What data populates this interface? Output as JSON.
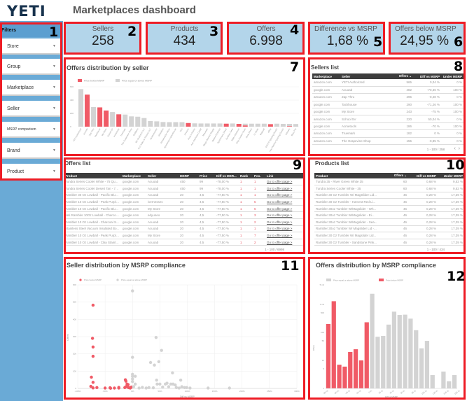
{
  "header": {
    "logo": "YETI",
    "title": "Marketplaces dashboard"
  },
  "filters": {
    "title": "Filters",
    "items": [
      "Store",
      "Group",
      "Marketplace",
      "Seller",
      "MSRP comparison",
      "Brand",
      "Product"
    ]
  },
  "kpis": [
    {
      "label": "Sellers",
      "value": "258"
    },
    {
      "label": "Products",
      "value": "434"
    },
    {
      "label": "Offers",
      "value": "6.998"
    },
    {
      "label": "Difference vs MSRP",
      "value": "1,68 %"
    },
    {
      "label": "Offers below MSRP",
      "value": "24,95 %"
    }
  ],
  "annotations": [
    "1",
    "2",
    "3",
    "4",
    "5",
    "6",
    "7",
    "8",
    "9",
    "10",
    "11",
    "12"
  ],
  "colors": {
    "below": "#f05a66",
    "above": "#d3d3d3",
    "annotation": "#ee1c25",
    "header": "#3d3d3d",
    "sidebar": "#6aaad6",
    "kpi": "#b3d5ea"
  },
  "sellers_list": {
    "title": "Sellers list",
    "columns": [
      "Marketplace",
      "Seller",
      "Offers ⌄",
      "Diff vs MSRP",
      "Under MSRP"
    ],
    "rows": [
      [
        "amazon.com",
        "YETI Authorized",
        "565",
        "0,04 %",
        "0 %"
      ],
      [
        "google.com",
        "Acuoab",
        "482",
        "-70,36 %",
        "100 %"
      ],
      [
        "amazon.com",
        "Zap Thru",
        "295",
        "-0,48 %",
        "0 %"
      ],
      [
        "google.com",
        "Tackhouse",
        "290",
        "-71,26 %",
        "100 %"
      ],
      [
        "google.com",
        "My Store",
        "243",
        "-75 %",
        "100 %"
      ],
      [
        "amazon.com",
        "School 5V",
        "220",
        "50,04 %",
        "0 %"
      ],
      [
        "google.com",
        "Acmetools",
        "186",
        "-70 %",
        "100 %"
      ],
      [
        "amazon.com",
        "Truemark",
        "182",
        "0 %",
        "0 %"
      ],
      [
        "amazon.com",
        "The Grapevine Shop",
        "155",
        "-0,85 %",
        "0 %"
      ]
    ],
    "pagination": "1 - 100 / 258"
  },
  "offers_list": {
    "title": "Offers list",
    "columns": [
      "Product",
      "Marketplace",
      "Seller",
      "MSRP",
      "Price",
      "Diff vs MSR...",
      "Rank",
      "Pos.",
      "Link"
    ],
    "rows": [
      [
        "Tundra Series Cooler White - 75 Qu...",
        "google.com",
        "Acuoab",
        "450",
        "99",
        "-78,00 %",
        "1",
        "1",
        "Go to offer page >"
      ],
      [
        "Tundra Series Cooler Desert Tan - 75...",
        "google.com",
        "Acuoab",
        "450",
        "99",
        "-78,00 %",
        "1",
        "1",
        "Go to offer page >"
      ],
      [
        "Rambler 30 Oz Lowball - Pacific Blue ...",
        "google.com",
        "Acuoab",
        "20",
        "4,5",
        "-77,50 %",
        "1",
        "1",
        "Go to offer page >"
      ],
      [
        "Rambler 10 Oz Lowball - Peak Purple ...",
        "google.com",
        "ivernesses",
        "20",
        "4,5",
        "-77,50 %",
        "1",
        "5",
        "Go to offer page >"
      ],
      [
        "Rambler 10 Oz Lowball - Pacific Blue ...",
        "google.com",
        "My Store",
        "20",
        "4,5",
        "-77,50 %",
        "1",
        "6",
        "Go to offer page >"
      ],
      [
        "Yeti Rambler 10Oz Lowball - Charcoal...",
        "google.com",
        "edyuneo",
        "20",
        "4,5",
        "-77,50 %",
        "1",
        "3",
        "Go to offer page >"
      ],
      [
        "Rambler 10 Oz Lowball - Charcoal S...",
        "google.com",
        "Acuoab",
        "20",
        "4,5",
        "-77,50 %",
        "1",
        "2",
        "Go to offer page >"
      ],
      [
        "Stainless Steel Vacuum Insulated Bo...",
        "google.com",
        "Acuoab",
        "20",
        "4,5",
        "-77,50 %",
        "1",
        "1",
        "Go to offer page >"
      ],
      [
        "Rambler 10 Oz Lowball - Peak Purple ...",
        "google.com",
        "My Store",
        "20",
        "4,5",
        "-77,50 %",
        "1",
        "7",
        "Go to offer page >"
      ],
      [
        "Rambler 10 Oz Lowball - Clay Stainless...",
        "google.com",
        "Acuoab",
        "20",
        "4,5",
        "-77,50 %",
        "1",
        "2",
        "Go to offer page >"
      ]
    ],
    "pagination": "1 - 100 / 6998"
  },
  "products_list": {
    "title": "Products list",
    "columns": [
      "Product",
      "Offers ⌄",
      "Diff vs MSRP",
      "Under MSRP"
    ],
    "rows": [
      [
        "Tundra 35 - River Green White 35",
        "60",
        "0,68 %",
        "9,52 %"
      ],
      [
        "Tundra Series Cooler White - 35",
        "60",
        "0,68 %",
        "9,52 %"
      ],
      [
        "Rambler 30 Oz Tumbler W/ MagSlider Lid...",
        "46",
        "0,28 %",
        "17,39 %"
      ],
      [
        "Rambler 30 Oz Tumbler - Harvest Red Li...",
        "46",
        "0,28 %",
        "17,39 %"
      ],
      [
        "Rambler 30oz Tumbler W/Magslider - Wh...",
        "46",
        "0,28 %",
        "17,39 %"
      ],
      [
        "Rambler 30oz Tumbler W/Magslider - Ei...",
        "46",
        "0,28 %",
        "17,39 %"
      ],
      [
        "Rambler 30oz Tumbler W/Magslider - Sea...",
        "46",
        "0,28 %",
        "17,39 %"
      ],
      [
        "Rambler 30oz Tumbler W/ Magslider Lid -...",
        "46",
        "0,28 %",
        "17,39 %"
      ],
      [
        "Rambler 30 Oz Tumbler W/ Magslider Lid...",
        "46",
        "0,28 %",
        "17,39 %"
      ],
      [
        "Rambler 30 Oz Tumbler - Sandstone Pink...",
        "46",
        "0,28 %",
        "17,39 %"
      ]
    ],
    "pagination": "1 - 100 / 434"
  },
  "chart_data": [
    {
      "type": "bar",
      "stacked": true,
      "title": "Offers distribution by seller",
      "legend": "top-left",
      "ylim": [
        0,
        600
      ],
      "yticks": [
        "0",
        "200",
        "400",
        "600"
      ],
      "categories": [
        "YETI Authorized",
        "Acuoab",
        "Zap Thru",
        "Tackhouse",
        "My Store",
        "School 5V",
        "Acmetools",
        "Truemark",
        "The Grapevine Shop",
        "Outfitters",
        "BC Outdoors LLC",
        "RLS Sales & Service LLC",
        "Outdoorsmen",
        "Wheelers",
        "Ambassador Store",
        "Sportsman's Warehouse",
        "WS",
        "Amazon",
        "Rock's Stores",
        "Ace Hardware Outlet",
        "Mountain",
        "Mega Outdoor Supply",
        "Marine Products",
        "Sportsmans Direct",
        "Outdoor Gear",
        "Seller Outdoors",
        "Ship Coolers Store",
        "Shop Direct",
        "LL Bean",
        "Walmart",
        "eBay",
        "DICK'S Sporting Goods",
        "Ace Outdoor Sporting Goods",
        "Scheels",
        "Bass Pro"
      ],
      "series": [
        {
          "name": "Price below MSRP",
          "values": [
            0,
            482,
            0,
            290,
            243,
            0,
            186,
            0,
            0,
            0,
            0,
            0,
            0,
            0,
            0,
            0,
            0,
            55,
            0,
            0,
            0,
            0,
            0,
            45,
            0,
            42,
            18,
            0,
            0,
            0,
            38,
            0,
            0,
            8,
            0
          ]
        },
        {
          "name": "Price equal or above MSRP",
          "values": [
            565,
            0,
            295,
            0,
            0,
            220,
            0,
            182,
            155,
            150,
            130,
            85,
            80,
            70,
            68,
            68,
            68,
            0,
            50,
            48,
            48,
            48,
            48,
            0,
            48,
            0,
            27,
            45,
            45,
            45,
            0,
            45,
            42,
            34,
            40
          ]
        }
      ]
    },
    {
      "type": "scatter",
      "title": "Seller distribution by MSRP compliance",
      "xlabel": "Diff vs MSRP",
      "ylabel": "Offers",
      "xlim": [
        -100,
        300
      ],
      "ylim": [
        0,
        600
      ],
      "legend": "top-left",
      "xticks": [
        "-100%",
        "-50%",
        "0%",
        "50%",
        "100%",
        "150%",
        "200%",
        "250%",
        "300%"
      ],
      "yticks": [
        "0",
        "100",
        "200",
        "300",
        "400",
        "500",
        "600"
      ],
      "series": [
        {
          "name": "Price below MSRP",
          "points": [
            [
              -72,
              482
            ],
            [
              -73,
              290
            ],
            [
              -72,
              240
            ],
            [
              -72,
              186
            ],
            [
              -75,
              65
            ],
            [
              -72,
              35
            ],
            [
              -76,
              12
            ],
            [
              -72,
              3
            ],
            [
              -65,
              5
            ],
            [
              -50,
              2
            ],
            [
              -41,
              4
            ],
            [
              -40,
              1
            ],
            [
              -33,
              2
            ],
            [
              -25,
              6
            ],
            [
              -25,
              2
            ],
            [
              -13,
              50
            ],
            [
              -12,
              42
            ],
            [
              -12,
              10
            ],
            [
              -10,
              25
            ],
            [
              -8,
              22
            ],
            [
              -8,
              6
            ],
            [
              -6,
              4
            ],
            [
              -4,
              2
            ],
            [
              -2,
              8
            ],
            [
              -14,
              5
            ]
          ]
        },
        {
          "name": "Price equal or above MSRP",
          "points": [
            [
              0,
              565
            ],
            [
              0,
              180
            ],
            [
              43,
              295
            ],
            [
              53,
              220
            ],
            [
              48,
              155
            ],
            [
              33,
              150
            ],
            [
              40,
              135
            ],
            [
              73,
              90
            ],
            [
              0,
              82
            ],
            [
              0,
              70
            ],
            [
              0,
              55
            ],
            [
              0,
              40
            ],
            [
              5,
              70
            ],
            [
              5,
              25
            ],
            [
              2,
              10
            ],
            [
              12,
              2
            ],
            [
              18,
              6
            ],
            [
              25,
              2
            ],
            [
              30,
              5
            ],
            [
              38,
              4
            ],
            [
              44,
              48
            ],
            [
              45,
              25
            ],
            [
              50,
              25
            ],
            [
              55,
              8
            ],
            [
              60,
              25
            ],
            [
              63,
              30
            ],
            [
              66,
              10
            ],
            [
              70,
              25
            ],
            [
              74,
              25
            ],
            [
              78,
              20
            ],
            [
              80,
              5
            ],
            [
              85,
              2
            ],
            [
              88,
              48
            ],
            [
              90,
              10
            ],
            [
              95,
              5
            ],
            [
              99,
              5
            ],
            [
              105,
              2
            ],
            [
              138,
              2
            ],
            [
              177,
              2
            ]
          ]
        }
      ]
    },
    {
      "type": "bar",
      "title": "Offers distribution by MSRP compliance",
      "xlabel": "Diff vs MSRP",
      "ylabel": "Offers",
      "yscale": "log",
      "ylim": [
        1,
        5000
      ],
      "legend": "top-left",
      "yticks": [
        "1",
        "5",
        "10",
        "50",
        "100",
        "500",
        "1 mil",
        "5 mil"
      ],
      "xticks": [
        "-80 %",
        "-60 %",
        "-40 %",
        "-20 %",
        "0 %",
        "20 %",
        "40 %",
        "60 %",
        "80 %",
        "100 %",
        "120 %",
        "140 %",
        "160 %"
      ],
      "categories": [
        "-80 %",
        "-70 %",
        "-60 %",
        "-50 %",
        "-40 %",
        "-30 %",
        "-20 %",
        "-10 %",
        "0 %",
        "10 %",
        "20 %",
        "30 %",
        "40 %",
        "50 %",
        "60 %",
        "70 %",
        "80 %",
        "90 %",
        "100 %",
        "110 %",
        "120 %",
        "130 %",
        "140 %",
        "150 %"
      ],
      "series": [
        {
          "name": "Price equal or above MSRP",
          "values": [
            0,
            0,
            0,
            0,
            0,
            0,
            0,
            0,
            2400,
            70,
            75,
            190,
            550,
            420,
            430,
            310,
            120,
            27,
            50,
            3,
            0,
            4,
            1.8,
            3
          ]
        },
        {
          "name": "Price below MSRP",
          "values": [
            200,
            1300,
            7,
            6,
            20,
            25,
            10,
            230,
            0,
            0,
            0,
            0,
            0,
            0,
            0,
            0,
            0,
            0,
            0,
            0,
            0,
            0,
            0,
            0
          ]
        }
      ]
    }
  ]
}
